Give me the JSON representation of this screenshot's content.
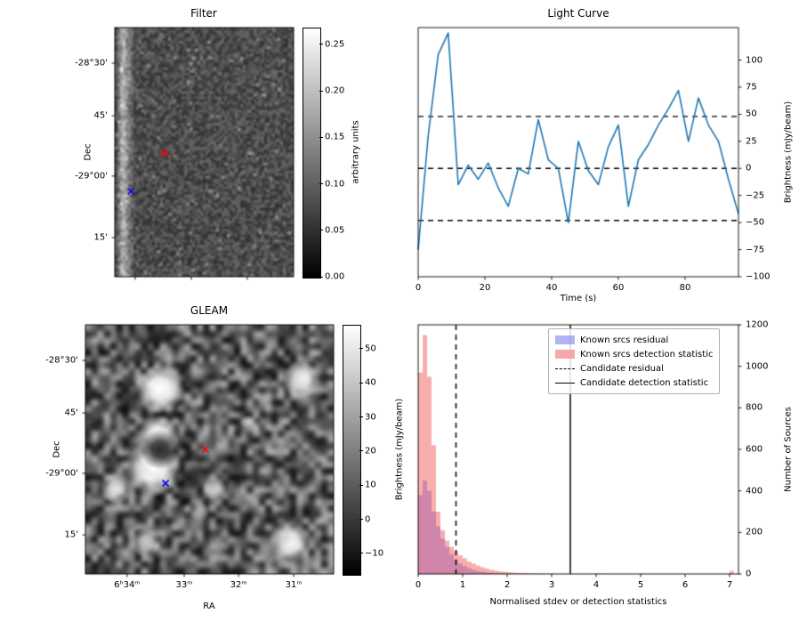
{
  "figure": {
    "background": "#ffffff"
  },
  "chart_data": [
    {
      "id": "filter",
      "type": "heatmap",
      "title": "Filter",
      "ylabel": "Dec",
      "yticks": {
        "labels": [
          "-28°30'",
          "45'",
          "-29°00'",
          "15'"
        ],
        "fracs": [
          0.143,
          0.354,
          0.596,
          0.843
        ]
      },
      "xticks": {
        "labels": [
          "",
          "",
          ""
        ],
        "fracs": [
          0.114,
          0.428,
          0.741
        ]
      },
      "markers": [
        {
          "symbol": "x",
          "color": "#ff0000",
          "x": 0.279,
          "y": 0.504
        },
        {
          "symbol": "x",
          "color": "#0000ff",
          "x": 0.09,
          "y": 0.657
        }
      ],
      "colorbar": {
        "label": "arbitrary units",
        "tick_labels": [
          "0.00",
          "0.05",
          "0.10",
          "0.15",
          "0.20",
          "0.25"
        ],
        "tick_values": [
          0,
          0.05,
          0.1,
          0.15,
          0.2,
          0.25
        ],
        "vmin": 0,
        "vmax": 0.268
      },
      "description": "grayscale noise image with bright vertical strip near left edge"
    },
    {
      "id": "light_curve",
      "type": "line",
      "title": "Light Curve",
      "xlabel": "Time (s)",
      "ylabel": "Brightness (mJy/beam)",
      "xlim": [
        0,
        96
      ],
      "ylim": [
        -100,
        130
      ],
      "xticks": [
        0,
        20,
        40,
        60,
        80
      ],
      "yticks": [
        100,
        75,
        50,
        25,
        0,
        -25,
        -50,
        -75,
        -100
      ],
      "line_color": "#1f77b4",
      "threshold_lines": [
        48,
        0,
        -48
      ],
      "x": [
        0,
        3,
        6,
        9,
        12,
        15,
        18,
        21,
        24,
        27,
        30,
        33,
        36,
        39,
        42,
        45,
        48,
        51,
        54,
        57,
        60,
        63,
        66,
        69,
        72,
        75,
        78,
        81,
        84,
        87,
        90,
        93,
        96
      ],
      "y": [
        -75,
        30,
        105,
        125,
        -15,
        3,
        -10,
        5,
        -18,
        -35,
        0,
        -5,
        45,
        8,
        0,
        -50,
        25,
        -2,
        -15,
        20,
        40,
        -35,
        8,
        22,
        40,
        55,
        72,
        25,
        65,
        40,
        25,
        -10,
        -42
      ]
    },
    {
      "id": "gleam",
      "type": "heatmap",
      "title": "GLEAM",
      "xlabel": "RA",
      "ylabel": "Dec",
      "yticks": {
        "labels": [
          "-28°30'",
          "45'",
          "-29°00'",
          "15'"
        ],
        "fracs": [
          0.143,
          0.354,
          0.596,
          0.843
        ]
      },
      "xticks": {
        "labels": [
          "6ʰ34ᵐ",
          "33ᵐ",
          "32ᵐ",
          "31ᵐ"
        ],
        "fracs": [
          0.168,
          0.398,
          0.617,
          0.839
        ]
      },
      "markers": [
        {
          "symbol": "x",
          "color": "#ff0000",
          "x": 0.484,
          "y": 0.5
        },
        {
          "symbol": "x",
          "color": "#0000ff",
          "x": 0.323,
          "y": 0.636
        }
      ],
      "colorbar": {
        "label": "Brightness (mJy/beam)",
        "tick_labels": [
          "50",
          "40",
          "30",
          "20",
          "10",
          "0",
          "−10"
        ],
        "tick_values": [
          50,
          40,
          30,
          20,
          10,
          0,
          -10
        ],
        "vmin": -16,
        "vmax": 57
      },
      "sources": [
        {
          "x": 0.3,
          "y": 0.255,
          "r": 0.05,
          "i": 1.0
        },
        {
          "x": 0.87,
          "y": 0.22,
          "r": 0.038,
          "i": 0.9
        },
        {
          "x": 0.295,
          "y": 0.445,
          "r": 0.042,
          "i": 1.0
        },
        {
          "x": 0.275,
          "y": 0.575,
          "r": 0.058,
          "i": 1.0
        },
        {
          "x": 0.125,
          "y": 0.655,
          "r": 0.032,
          "i": 0.8
        },
        {
          "x": 0.52,
          "y": 0.655,
          "r": 0.024,
          "i": 0.65
        },
        {
          "x": 0.245,
          "y": 0.875,
          "r": 0.03,
          "i": 0.75
        },
        {
          "x": 0.825,
          "y": 0.875,
          "r": 0.045,
          "i": 0.9
        },
        {
          "x": 0.46,
          "y": 0.75,
          "r": 0.02,
          "i": 0.5
        },
        {
          "x": 0.66,
          "y": 0.4,
          "r": 0.02,
          "i": 0.45
        },
        {
          "x": 0.3,
          "y": 0.5,
          "r": 0.04,
          "i": -0.8
        },
        {
          "x": 0.42,
          "y": 0.62,
          "r": 0.035,
          "i": -0.7
        },
        {
          "x": 0.17,
          "y": 0.3,
          "r": 0.04,
          "i": -0.6
        },
        {
          "x": 0.6,
          "y": 0.55,
          "r": 0.03,
          "i": -0.5
        }
      ],
      "description": "smoothed grayscale sky map with bright point sources"
    },
    {
      "id": "histogram",
      "type": "histogram",
      "xlabel": "Normalised stdev or detection statistics",
      "ylabel": "Number of Sources",
      "xlim": [
        0,
        7.2
      ],
      "ylim": [
        0,
        1200
      ],
      "xticks": [
        0,
        1,
        2,
        3,
        4,
        5,
        6,
        7
      ],
      "yticks": [
        0,
        200,
        400,
        600,
        800,
        1000,
        1200
      ],
      "bin_start": 0,
      "bin_width": 0.1,
      "series": [
        {
          "name": "Known srcs residual",
          "color": "rgba(70,70,235,0.45)",
          "values": [
            380,
            450,
            400,
            300,
            230,
            170,
            130,
            95,
            70,
            50,
            38,
            28,
            20,
            14,
            10,
            7,
            5,
            3,
            2,
            1,
            1,
            0,
            0,
            0,
            0,
            0,
            0,
            0,
            0,
            0,
            0,
            0,
            0,
            0,
            0,
            0,
            0,
            0,
            0,
            0,
            0,
            0,
            0,
            0,
            0,
            0,
            0,
            0,
            0,
            0,
            0,
            0,
            0,
            0,
            0,
            0,
            0,
            0,
            0,
            0,
            0,
            0,
            0,
            0,
            0,
            0,
            0,
            0,
            0,
            0,
            0
          ]
        },
        {
          "name": "Known srcs detection statistic",
          "color": "rgba(244,93,93,0.5)",
          "values": [
            970,
            1150,
            950,
            620,
            300,
            210,
            160,
            130,
            110,
            90,
            75,
            60,
            50,
            40,
            32,
            26,
            20,
            16,
            12,
            10,
            8,
            6,
            5,
            4,
            3,
            2,
            2,
            1,
            1,
            1,
            1,
            0,
            0,
            0,
            0,
            0,
            0,
            0,
            0,
            0,
            2,
            1,
            0,
            0,
            0,
            0,
            0,
            0,
            0,
            0,
            1,
            0,
            0,
            0,
            0,
            0,
            0,
            0,
            0,
            0,
            0,
            0,
            0,
            0,
            0,
            0,
            0,
            0,
            0,
            0,
            15
          ]
        }
      ],
      "vlines": [
        {
          "name": "Candidate residual",
          "style": "dashed",
          "x": 0.85
        },
        {
          "name": "Candidate detection statistic",
          "style": "solid",
          "x": 3.42
        }
      ],
      "legend": [
        {
          "swatch": "patch",
          "color": "rgba(114,114,237,0.55)",
          "label": "Known srcs residual"
        },
        {
          "swatch": "patch",
          "color": "rgba(246,139,139,0.75)",
          "label": "Known srcs detection statistic"
        },
        {
          "swatch": "dashed",
          "label": "Candidate residual"
        },
        {
          "swatch": "solid",
          "label": "Candidate detection statistic"
        }
      ]
    }
  ]
}
